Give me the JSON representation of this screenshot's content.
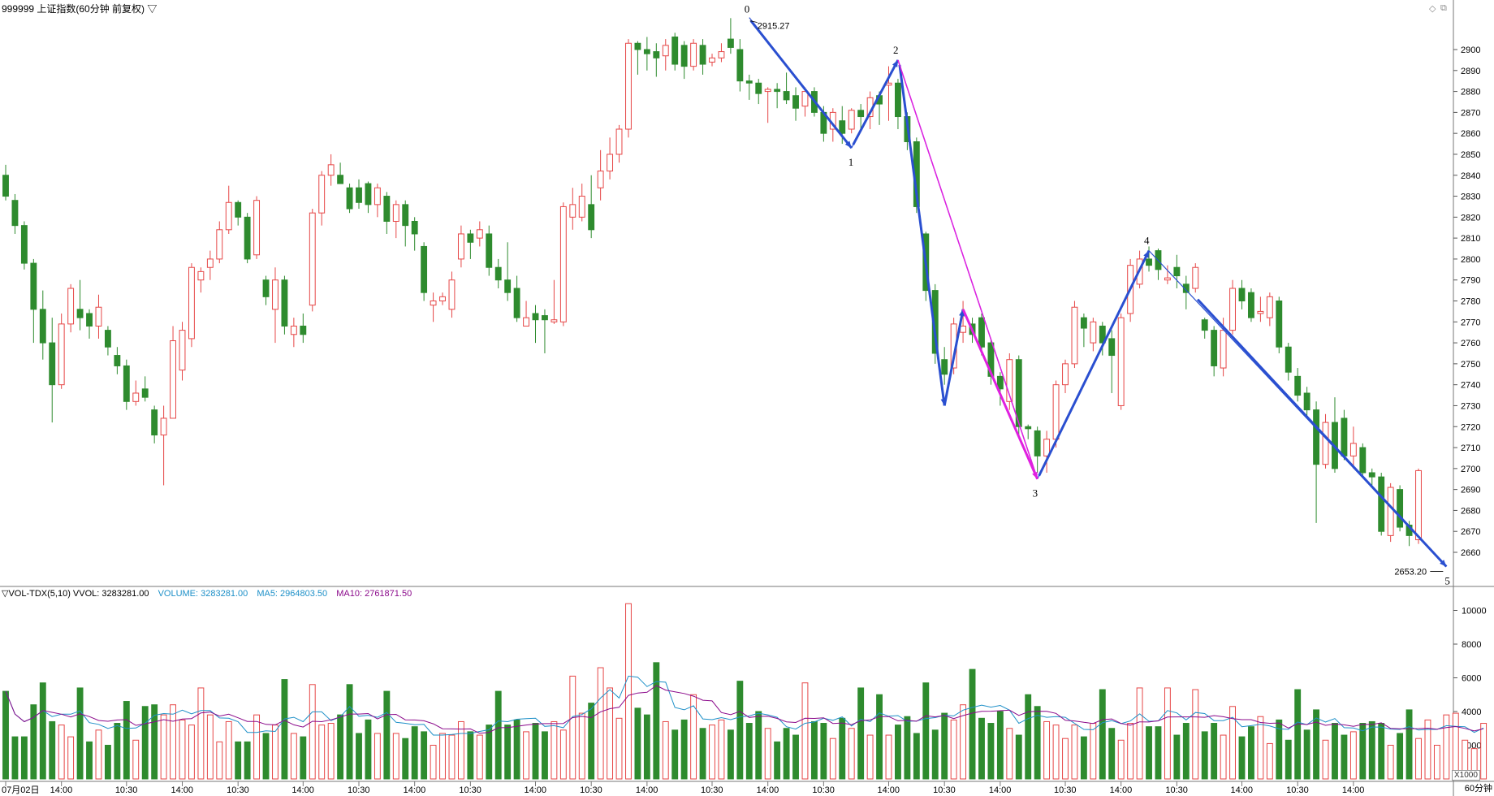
{
  "header": {
    "title": "999999 上证指数(60分钟 前复权) ▽"
  },
  "volume_header": {
    "label": "▽VOL-TDX(5,10) VVOL: 3283281.00",
    "volume": "VOLUME: 3283281.00",
    "ma5": "MA5: 2964803.50",
    "ma10": "MA10: 2761871.50"
  },
  "footer": {
    "period": "60分钟",
    "scale": "X1000"
  },
  "colors": {
    "up": "#e64646",
    "down": "#2e8b2e",
    "wave_blue": "#2a4fd0",
    "wave_magenta": "#e020e0",
    "ma5": "#1e90c8",
    "ma10": "#8b0a8b",
    "grid": "#c8c8c8"
  },
  "chart_data": [
    {
      "type": "candlestick",
      "title": "",
      "ylim": [
        2640,
        2930
      ],
      "ytick_labels": [
        "2900",
        "2890",
        "2880",
        "2870",
        "2860",
        "2850",
        "2840",
        "2830",
        "2820",
        "2810",
        "2800",
        "2790",
        "2780",
        "2770",
        "2760",
        "2750",
        "2740",
        "2730",
        "2720",
        "2710",
        "2700",
        "2690",
        "2680",
        "2670",
        "2660"
      ],
      "x_tick_labels": [
        "07月02日",
        "14:00",
        "10:30",
        "14:00",
        "10:30",
        "14:00",
        "10:30",
        "14:00",
        "10:30",
        "14:00",
        "10:30",
        "14:00",
        "10:30",
        "14:00",
        "10:30",
        "14:00",
        "10:30",
        "14:00",
        "10:30",
        "14:00",
        "10:30",
        "14:00",
        "10:30",
        "14:00"
      ],
      "candles": [
        [
          2840,
          2830,
          2845,
          2828
        ],
        [
          2828,
          2816,
          2831,
          2812
        ],
        [
          2816,
          2798,
          2818,
          2795
        ],
        [
          2798,
          2776,
          2800,
          2760
        ],
        [
          2776,
          2760,
          2785,
          2752
        ],
        [
          2760,
          2740,
          2772,
          2722
        ],
        [
          2740,
          2769,
          2774,
          2738
        ],
        [
          2769,
          2786,
          2788,
          2765
        ],
        [
          2776,
          2772,
          2790,
          2766
        ],
        [
          2774,
          2768,
          2776,
          2762
        ],
        [
          2768,
          2777,
          2783,
          2762
        ],
        [
          2766,
          2758,
          2768,
          2754
        ],
        [
          2754,
          2749,
          2758,
          2745
        ],
        [
          2749,
          2732,
          2752,
          2728
        ],
        [
          2732,
          2736,
          2742,
          2730
        ],
        [
          2738,
          2734,
          2744,
          2732
        ],
        [
          2728,
          2716,
          2730,
          2712
        ],
        [
          2716,
          2724,
          2730,
          2692
        ],
        [
          2724,
          2761,
          2768,
          2724
        ],
        [
          2747,
          2766,
          2770,
          2742
        ],
        [
          2762,
          2796,
          2798,
          2758
        ],
        [
          2790,
          2794,
          2796,
          2784
        ],
        [
          2796,
          2800,
          2804,
          2790
        ],
        [
          2800,
          2814,
          2818,
          2798
        ],
        [
          2814,
          2827,
          2835,
          2812
        ],
        [
          2827,
          2820,
          2828,
          2816
        ],
        [
          2820,
          2800,
          2822,
          2798
        ],
        [
          2802,
          2828,
          2830,
          2800
        ],
        [
          2790,
          2782,
          2792,
          2778
        ],
        [
          2776,
          2790,
          2796,
          2760
        ],
        [
          2790,
          2768,
          2792,
          2764
        ],
        [
          2764,
          2768,
          2772,
          2758
        ],
        [
          2768,
          2764,
          2774,
          2760
        ],
        [
          2778,
          2822,
          2824,
          2775
        ],
        [
          2822,
          2840,
          2842,
          2816
        ],
        [
          2840,
          2845,
          2850,
          2835
        ],
        [
          2840,
          2836,
          2846,
          2836
        ],
        [
          2834,
          2824,
          2836,
          2822
        ],
        [
          2834,
          2827,
          2838,
          2824
        ],
        [
          2836,
          2826,
          2837,
          2822
        ],
        [
          2826,
          2834,
          2836,
          2820
        ],
        [
          2830,
          2818,
          2832,
          2812
        ],
        [
          2818,
          2826,
          2828,
          2810
        ],
        [
          2826,
          2816,
          2828,
          2806
        ],
        [
          2818,
          2812,
          2820,
          2804
        ],
        [
          2806,
          2784,
          2808,
          2780
        ],
        [
          2778,
          2780,
          2784,
          2770
        ],
        [
          2780,
          2782,
          2784,
          2778
        ],
        [
          2776,
          2790,
          2794,
          2772
        ],
        [
          2800,
          2812,
          2816,
          2796
        ],
        [
          2812,
          2808,
          2814,
          2800
        ],
        [
          2810,
          2814,
          2818,
          2806
        ],
        [
          2812,
          2796,
          2816,
          2792
        ],
        [
          2796,
          2790,
          2800,
          2786
        ],
        [
          2790,
          2784,
          2808,
          2780
        ],
        [
          2786,
          2772,
          2792,
          2770
        ],
        [
          2768,
          2772,
          2780,
          2768
        ],
        [
          2774,
          2771,
          2778,
          2760
        ],
        [
          2773,
          2771,
          2776,
          2755
        ],
        [
          2770,
          2771,
          2790,
          2769
        ],
        [
          2770,
          2825,
          2827,
          2768
        ],
        [
          2820,
          2826,
          2834,
          2814
        ],
        [
          2820,
          2830,
          2836,
          2818
        ],
        [
          2826,
          2814,
          2840,
          2810
        ],
        [
          2834,
          2842,
          2852,
          2828
        ],
        [
          2842,
          2850,
          2858,
          2838
        ],
        [
          2850,
          2862,
          2864,
          2846
        ],
        [
          2862,
          2903,
          2905,
          2858
        ],
        [
          2903,
          2900,
          2904,
          2888
        ],
        [
          2900,
          2898,
          2906,
          2890
        ],
        [
          2899,
          2896,
          2903,
          2887
        ],
        [
          2897,
          2902,
          2905,
          2890
        ],
        [
          2906,
          2893,
          2908,
          2890
        ],
        [
          2902,
          2892,
          2904,
          2886
        ],
        [
          2892,
          2903,
          2905,
          2890
        ],
        [
          2902,
          2893,
          2905,
          2888
        ],
        [
          2894,
          2896,
          2898,
          2892
        ],
        [
          2896,
          2899,
          2903,
          2894
        ],
        [
          2905,
          2901,
          2915,
          2898
        ],
        [
          2900,
          2885,
          2905,
          2880
        ],
        [
          2885,
          2884,
          2888,
          2876
        ],
        [
          2884,
          2879,
          2886,
          2874
        ],
        [
          2880,
          2881,
          2882,
          2865
        ],
        [
          2881,
          2880,
          2884,
          2872
        ],
        [
          2880,
          2876,
          2889,
          2874
        ],
        [
          2878,
          2872,
          2882,
          2866
        ],
        [
          2873,
          2880,
          2882,
          2868
        ],
        [
          2880,
          2870,
          2882,
          2868
        ],
        [
          2870,
          2860,
          2873,
          2856
        ],
        [
          2862,
          2870,
          2872,
          2856
        ],
        [
          2866,
          2860,
          2873,
          2855
        ],
        [
          2862,
          2871,
          2872,
          2860
        ],
        [
          2871,
          2868,
          2874,
          2862
        ],
        [
          2868,
          2877,
          2880,
          2862
        ],
        [
          2878,
          2874,
          2880,
          2864
        ],
        [
          2883,
          2884,
          2892,
          2866
        ],
        [
          2884,
          2868,
          2886,
          2862
        ],
        [
          2868,
          2856,
          2870,
          2852
        ],
        [
          2856,
          2825,
          2858,
          2822
        ],
        [
          2812,
          2785,
          2813,
          2780
        ],
        [
          2785,
          2755,
          2788,
          2750
        ],
        [
          2752,
          2745,
          2758,
          2740
        ],
        [
          2748,
          2769,
          2772,
          2745
        ],
        [
          2765,
          2768,
          2780,
          2760
        ],
        [
          2769,
          2764,
          2772,
          2760
        ],
        [
          2772,
          2758,
          2774,
          2754
        ],
        [
          2760,
          2744,
          2762,
          2740
        ],
        [
          2744,
          2738,
          2746,
          2730
        ],
        [
          2732,
          2752,
          2755,
          2728
        ],
        [
          2752,
          2720,
          2754,
          2716
        ],
        [
          2720,
          2719,
          2721,
          2714
        ],
        [
          2718,
          2706,
          2720,
          2698
        ],
        [
          2706,
          2714,
          2718,
          2698
        ],
        [
          2714,
          2740,
          2742,
          2710
        ],
        [
          2740,
          2750,
          2752,
          2736
        ],
        [
          2750,
          2777,
          2780,
          2748
        ],
        [
          2772,
          2767,
          2774,
          2758
        ],
        [
          2760,
          2770,
          2772,
          2756
        ],
        [
          2768,
          2760,
          2770,
          2754
        ],
        [
          2762,
          2754,
          2766,
          2736
        ],
        [
          2730,
          2772,
          2774,
          2728
        ],
        [
          2774,
          2797,
          2800,
          2770
        ],
        [
          2788,
          2800,
          2804,
          2786
        ],
        [
          2800,
          2797,
          2806,
          2794
        ],
        [
          2804,
          2795,
          2805,
          2790
        ],
        [
          2790,
          2791,
          2797,
          2788
        ],
        [
          2796,
          2792,
          2802,
          2786
        ],
        [
          2788,
          2784,
          2792,
          2776
        ],
        [
          2786,
          2796,
          2798,
          2784
        ],
        [
          2771,
          2766,
          2772,
          2762
        ],
        [
          2766,
          2749,
          2768,
          2744
        ],
        [
          2748,
          2766,
          2772,
          2744
        ],
        [
          2766,
          2786,
          2790,
          2764
        ],
        [
          2786,
          2780,
          2790,
          2776
        ],
        [
          2784,
          2772,
          2786,
          2770
        ],
        [
          2774,
          2775,
          2782,
          2770
        ],
        [
          2772,
          2782,
          2784,
          2768
        ],
        [
          2780,
          2758,
          2782,
          2755
        ],
        [
          2758,
          2746,
          2760,
          2742
        ],
        [
          2744,
          2735,
          2748,
          2732
        ],
        [
          2736,
          2728,
          2739,
          2725
        ],
        [
          2728,
          2702,
          2732,
          2674
        ],
        [
          2702,
          2722,
          2726,
          2700
        ],
        [
          2722,
          2700,
          2734,
          2698
        ],
        [
          2724,
          2706,
          2728,
          2704
        ],
        [
          2706,
          2712,
          2720,
          2700
        ],
        [
          2710,
          2698,
          2712,
          2696
        ],
        [
          2698,
          2696,
          2700,
          2692
        ],
        [
          2696,
          2670,
          2698,
          2668
        ],
        [
          2668,
          2691,
          2693,
          2665
        ],
        [
          2690,
          2672,
          2692,
          2670
        ],
        [
          2673,
          2668,
          2675,
          2663
        ],
        [
          2666,
          2699,
          2700,
          2664
        ]
      ],
      "zigzag": [
        {
          "label": "0",
          "price": 2915.27
        },
        {
          "label": "1",
          "price": 2853
        },
        {
          "label": "2",
          "price": 2895
        },
        {
          "label": "3",
          "price": 2695
        },
        {
          "label": "4",
          "price": 2804
        },
        {
          "label": "5",
          "price": 2653.2
        }
      ],
      "price_annotations": [
        "2915.27",
        "2653.20"
      ]
    },
    {
      "type": "bar",
      "title": "",
      "ylim": [
        0,
        11000
      ],
      "ytick_labels": [
        "10000",
        "8000",
        "6000",
        "4000",
        "2000"
      ],
      "volumes": [
        5200,
        2500,
        2500,
        4400,
        5700,
        3400,
        3200,
        2500,
        5400,
        2200,
        2900,
        2000,
        3300,
        4600,
        2300,
        4300,
        4400,
        3800,
        4400,
        3500,
        3200,
        5400,
        3800,
        2200,
        3400,
        2200,
        2200,
        3800,
        2700,
        3200,
        5900,
        2700,
        2500,
        5600,
        3200,
        3300,
        3800,
        5600,
        2700,
        3500,
        2700,
        5200,
        2700,
        2400,
        3100,
        2800,
        2000,
        2700,
        2600,
        3400,
        2800,
        2600,
        3200,
        5200,
        3200,
        3500,
        2800,
        3300,
        2800,
        3400,
        2900,
        6100,
        3900,
        4500,
        6600,
        5400,
        3600,
        10400,
        4200,
        3800,
        6900,
        3400,
        2900,
        3500,
        5000,
        3000,
        3200,
        3500,
        2900,
        5800,
        3300,
        4000,
        3000,
        2200,
        3000,
        2600,
        5700,
        3400,
        3300,
        2400,
        3600,
        3000,
        5400,
        2600,
        5000,
        2600,
        3200,
        3700,
        2700,
        5700,
        2900,
        3900,
        3500,
        4400,
        6500,
        3600,
        3300,
        4000,
        3000,
        2600,
        5000,
        4300,
        3400,
        3200,
        2400,
        3200,
        2500,
        3300,
        5300,
        3000,
        2300,
        3300,
        5400,
        3100,
        3100,
        5400,
        2600,
        3300,
        5300,
        2800,
        3300,
        2600,
        4300,
        2500,
        3100,
        3700,
        2100,
        3500,
        2300,
        5300,
        2900,
        4100,
        2300,
        3300,
        2600,
        2800,
        3300,
        3400,
        3300,
        2000,
        2700,
        4100,
        2400,
        3500,
        2000,
        3800,
        3900,
        2300,
        1800,
        3300
      ],
      "series": [
        {
          "name": "MA5",
          "value": "2964803.50"
        },
        {
          "name": "MA10",
          "value": "2761871.50"
        }
      ]
    }
  ]
}
